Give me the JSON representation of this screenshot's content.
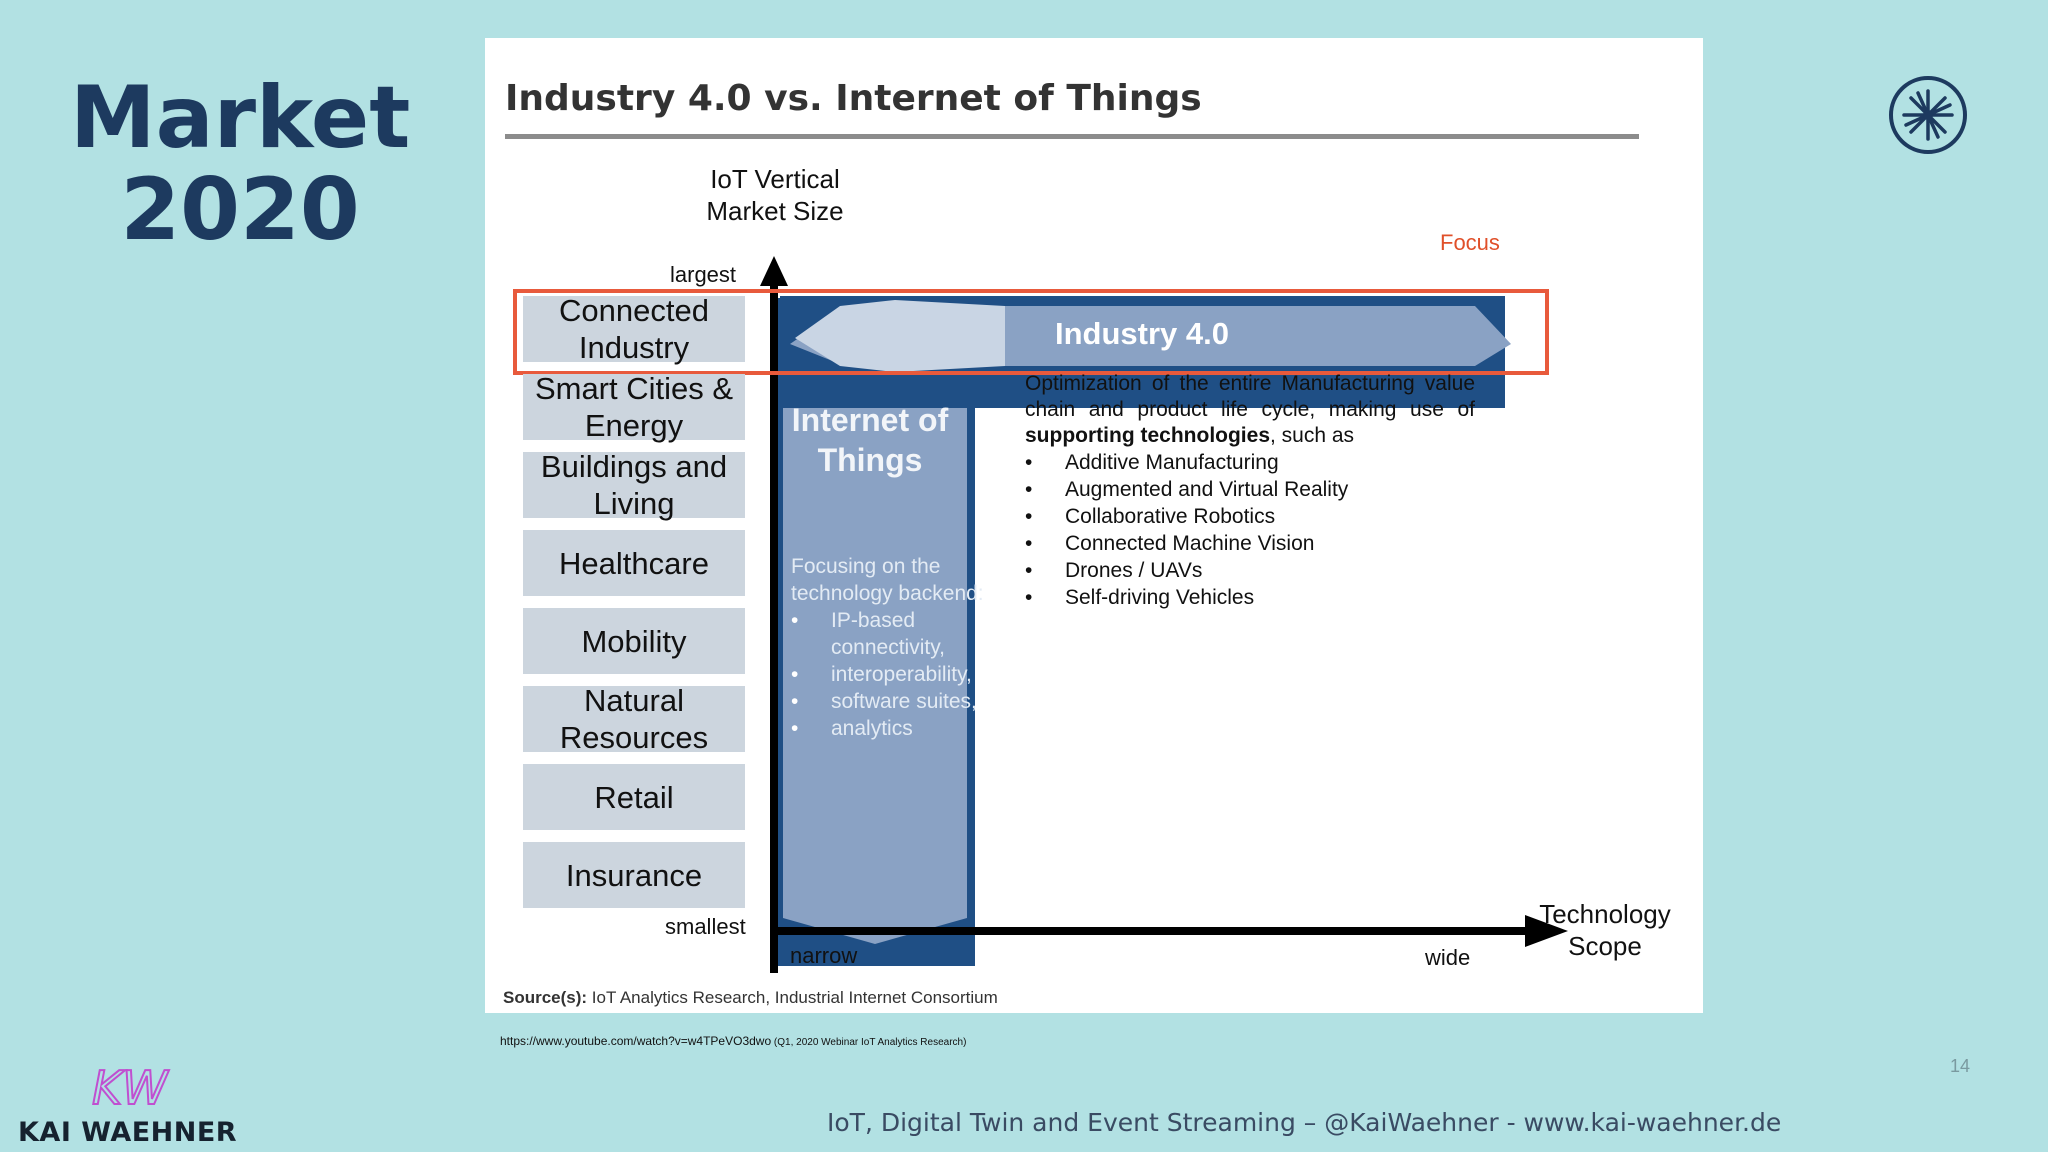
{
  "slide": {
    "title_line1": "Market",
    "title_line2": "2020",
    "logo_icon": "asterisk-circle-icon"
  },
  "diagram": {
    "title": "Industry 4.0 vs. Internet of Things",
    "y_axis": {
      "title_line1": "IoT Vertical",
      "title_line2": "Market Size",
      "top_label": "largest",
      "bottom_label": "smallest"
    },
    "x_axis": {
      "left_label": "narrow",
      "right_label": "wide",
      "title_line1": "Technology",
      "title_line2": "Scope"
    },
    "focus_label": "Focus",
    "sectors": [
      {
        "line1": "Connected",
        "line2": "Industry"
      },
      {
        "line1": "Smart Cities &",
        "line2": "Energy"
      },
      {
        "line1": "Buildings and",
        "line2": "Living"
      },
      {
        "line1": "Healthcare",
        "line2": ""
      },
      {
        "line1": "Mobility",
        "line2": ""
      },
      {
        "line1": "Natural",
        "line2": "Resources"
      },
      {
        "line1": "Retail",
        "line2": ""
      },
      {
        "line1": "Insurance",
        "line2": ""
      }
    ],
    "iot": {
      "title_line1": "Internet of",
      "title_line2": "Things",
      "intro": "Focusing on the technology backend:",
      "items": [
        "IP-based connectivity,",
        "interoperability,",
        "software suites,",
        "analytics"
      ]
    },
    "industry40": {
      "title": "Industry 4.0",
      "desc_pre": "Optimization of the entire Manufacturing value chain and product life cycle, making use of ",
      "desc_bold": "supporting technologies",
      "desc_post": ", such as",
      "items": [
        "Additive Manufacturing",
        "Augmented and Virtual Reality",
        "Collaborative Robotics",
        "Connected Machine Vision",
        "Drones / UAVs",
        "Self-driving Vehicles"
      ]
    },
    "source_label": "Source(s):",
    "source_text": " IoT Analytics Research, Industrial Internet Consortium"
  },
  "reference": {
    "url": "https://www.youtube.com/watch?v=w4TPeVO3dwo",
    "note": " (Q1, 2020 Webinar IoT Analytics Research)"
  },
  "footer": {
    "page_number": "14",
    "text": "IoT, Digital Twin and Event Streaming – @KaiWaehner - www.kai-waehner.de",
    "brand_name": "KAI WAEHNER",
    "brand_mark_text": "KW"
  },
  "colors": {
    "background": "#b2e1e3",
    "title": "#1d3a5f",
    "focus_box": "#e85a3c",
    "dark_blue": "#1f4f85",
    "brand_mark": "#c04fd0"
  }
}
